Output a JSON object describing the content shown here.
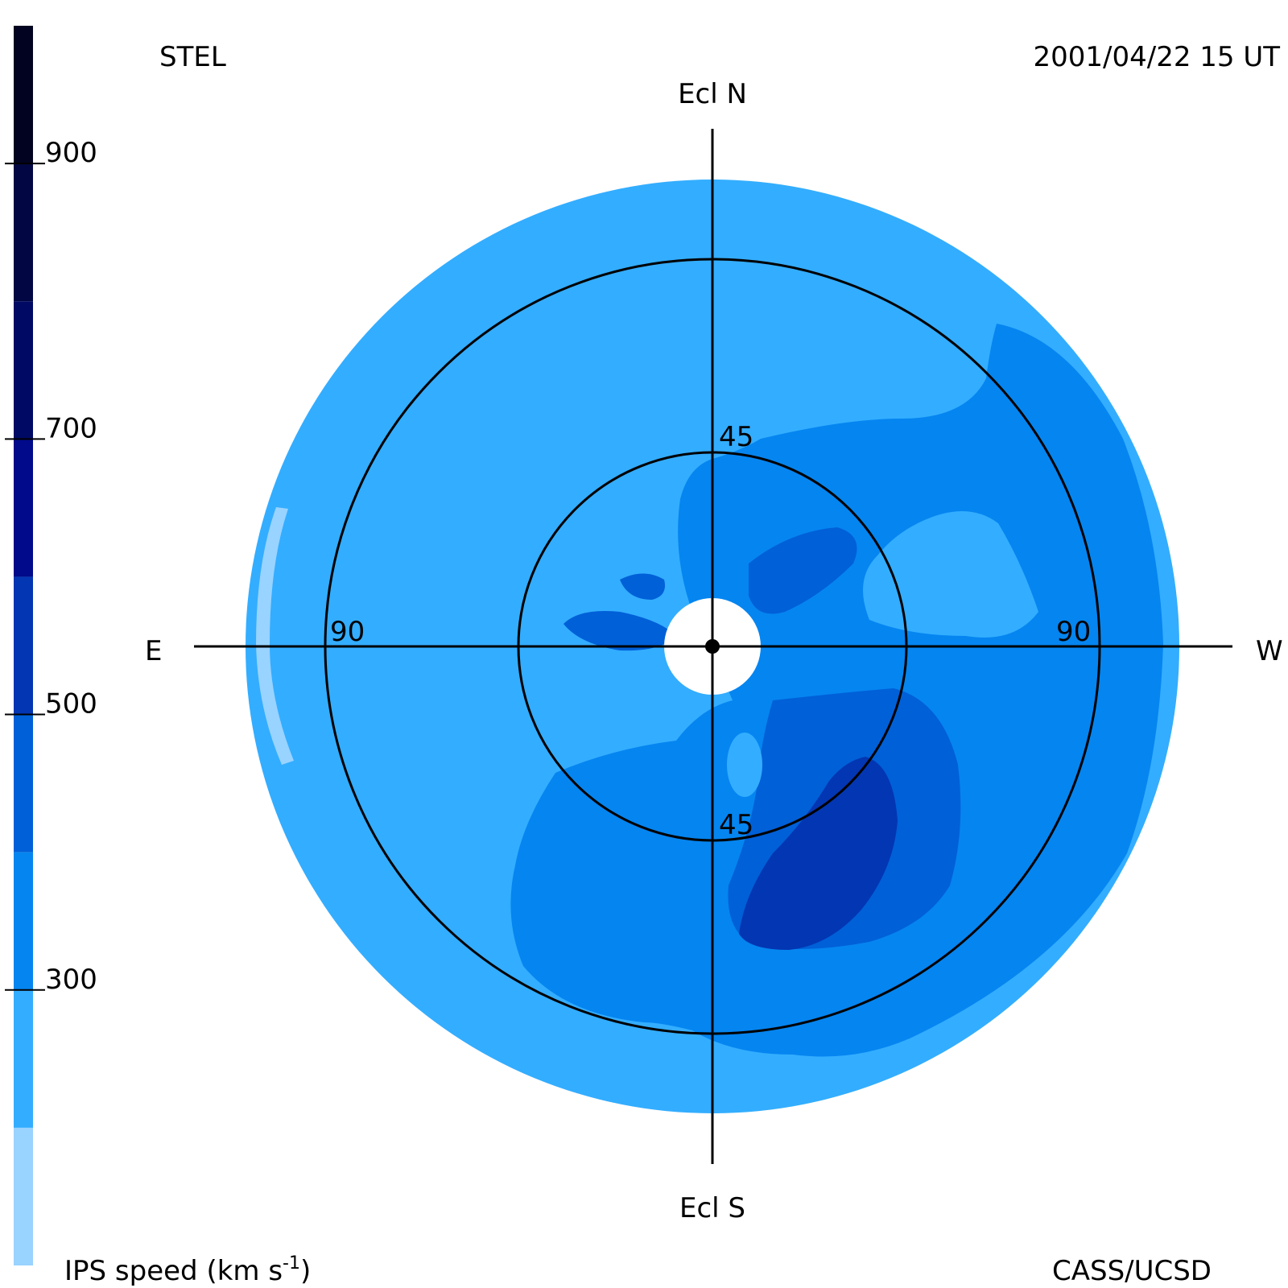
{
  "header": {
    "station": "STEL",
    "datetime": "2001/04/22 15 UT"
  },
  "footer": {
    "colorbar_label": "IPS speed (km s",
    "colorbar_label_exp": "-1",
    "colorbar_label_end": ")",
    "credit": "CASS/UCSD"
  },
  "axes": {
    "north": "Ecl N",
    "south": "Ecl S",
    "east": "E",
    "west": "W"
  },
  "rings": {
    "inner_north": "45",
    "inner_south": "45",
    "outer_east": "90",
    "outer_west": "90"
  },
  "colorbar": {
    "ticks": [
      "900",
      "700",
      "500",
      "300"
    ],
    "tick_values": [
      900,
      700,
      500,
      300
    ],
    "range": [
      100,
      1000
    ],
    "bands": [
      {
        "from": 100,
        "to": 200,
        "color": "#99d3ff"
      },
      {
        "from": 200,
        "to": 300,
        "color": "#33adff"
      },
      {
        "from": 300,
        "to": 400,
        "color": "#0585f0"
      },
      {
        "from": 400,
        "to": 500,
        "color": "#0060d8"
      },
      {
        "from": 500,
        "to": 600,
        "color": "#0336b2"
      },
      {
        "from": 600,
        "to": 700,
        "color": "#000a8a"
      },
      {
        "from": 700,
        "to": 800,
        "color": "#000964"
      },
      {
        "from": 800,
        "to": 900,
        "color": "#020743"
      },
      {
        "from": 900,
        "to": 1000,
        "color": "#010320"
      }
    ]
  },
  "colors": {
    "c1": "#99d3ff",
    "c2": "#33adff",
    "c3": "#0585f0",
    "c4": "#0060d8",
    "c5": "#0336b2"
  }
}
